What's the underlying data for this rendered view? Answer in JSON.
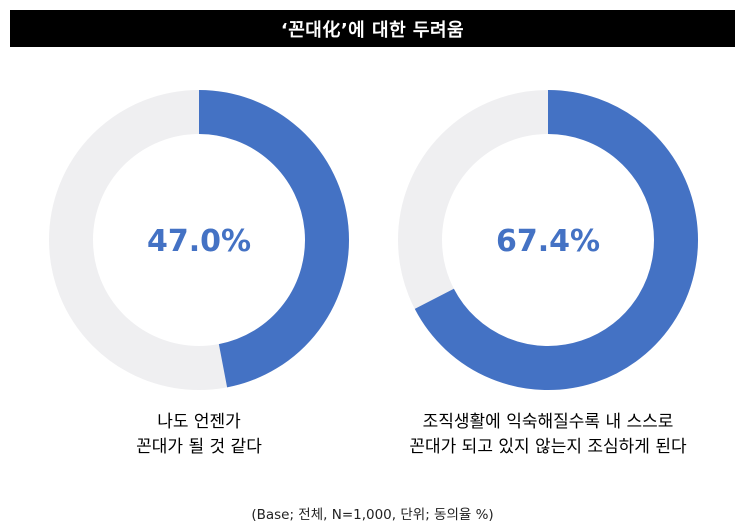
{
  "title": "‘꼰대化’에 대한 두려움",
  "colors": {
    "accent": "#4472C4",
    "track": "#EFEFF1",
    "title_bg": "#000000",
    "title_text": "#FFFFFF"
  },
  "chart_data": [
    {
      "type": "pie",
      "style": "donut",
      "value": 47.0,
      "remainder": 53.0,
      "center_label": "47.0%",
      "caption_lines": [
        "나도 언젠가",
        "꼰대가 될 것 같다"
      ]
    },
    {
      "type": "pie",
      "style": "donut",
      "value": 67.4,
      "remainder": 32.6,
      "center_label": "67.4%",
      "caption_lines": [
        "조직생활에 익숙해질수록 내 스스로",
        "꼰대가 되고 있지 않는지 조심하게 된다"
      ]
    }
  ],
  "footnote": "(Base; 전체, N=1,000, 단위; 동의율 %)"
}
